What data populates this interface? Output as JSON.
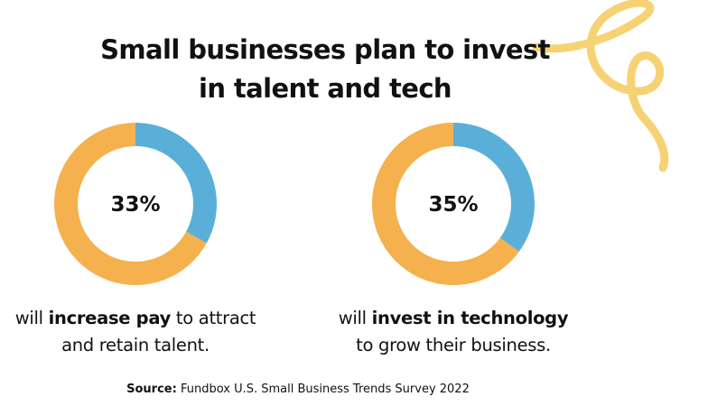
{
  "headline": {
    "line1": "Small businesses plan to invest",
    "line2": "in talent and tech"
  },
  "colors": {
    "share": "#5aafd9",
    "remainder": "#f4b14e",
    "swirl": "#f6d274"
  },
  "chart_data": [
    {
      "type": "pie",
      "variant": "donut",
      "value_label": "33%",
      "slices": [
        {
          "value": 33,
          "color": "#5aafd9"
        },
        {
          "value": 67,
          "color": "#f4b14e"
        }
      ],
      "caption": {
        "line1_pre": "will ",
        "line1_bold": "increase pay",
        "line1_post": " to attract",
        "line2": "and retain talent."
      }
    },
    {
      "type": "pie",
      "variant": "donut",
      "value_label": "35%",
      "slices": [
        {
          "value": 35,
          "color": "#5aafd9"
        },
        {
          "value": 65,
          "color": "#f4b14e"
        }
      ],
      "caption": {
        "line1_pre": "will ",
        "line1_bold": "invest in technology",
        "line1_post": "",
        "line2": "to grow their business."
      }
    }
  ],
  "source": {
    "label": "Source:",
    "text": " Fundbox U.S. Small Business Trends Survey 2022"
  }
}
